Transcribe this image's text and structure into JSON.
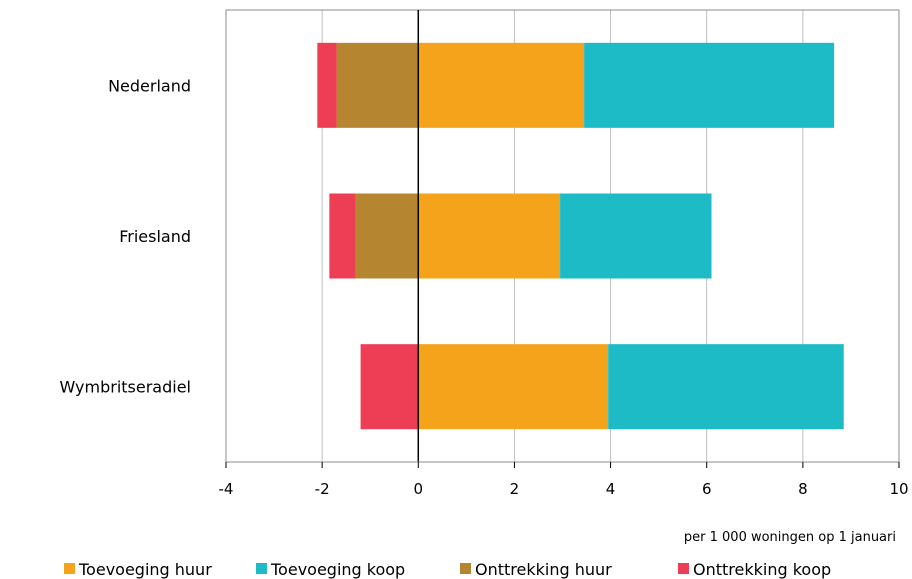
{
  "chart_data": {
    "type": "bar",
    "orientation": "horizontal",
    "stacked": true,
    "categories": [
      "Nederland",
      "Friesland",
      "Wymbritseradiel"
    ],
    "series": [
      {
        "name": "Toevoeging huur",
        "values": [
          3.45,
          2.95,
          3.95
        ],
        "color": "#F5A31A"
      },
      {
        "name": "Toevoeging koop",
        "values": [
          5.2,
          3.15,
          4.9
        ],
        "color": "#1DBBC6"
      },
      {
        "name": "Onttrekking huur",
        "values": [
          -1.7,
          -1.3,
          0
        ],
        "color": "#B5862F"
      },
      {
        "name": "Onttrekking koop",
        "values": [
          -0.4,
          -0.55,
          -1.2
        ],
        "color": "#EE3E56"
      }
    ],
    "xlim": [
      -4,
      10
    ],
    "xticks": [
      "-4",
      "-2",
      "0",
      "2",
      "4",
      "6",
      "8",
      "10"
    ],
    "xlabel": "per 1 000 woningen op 1 januari",
    "grid": true,
    "legend": "bottom"
  }
}
